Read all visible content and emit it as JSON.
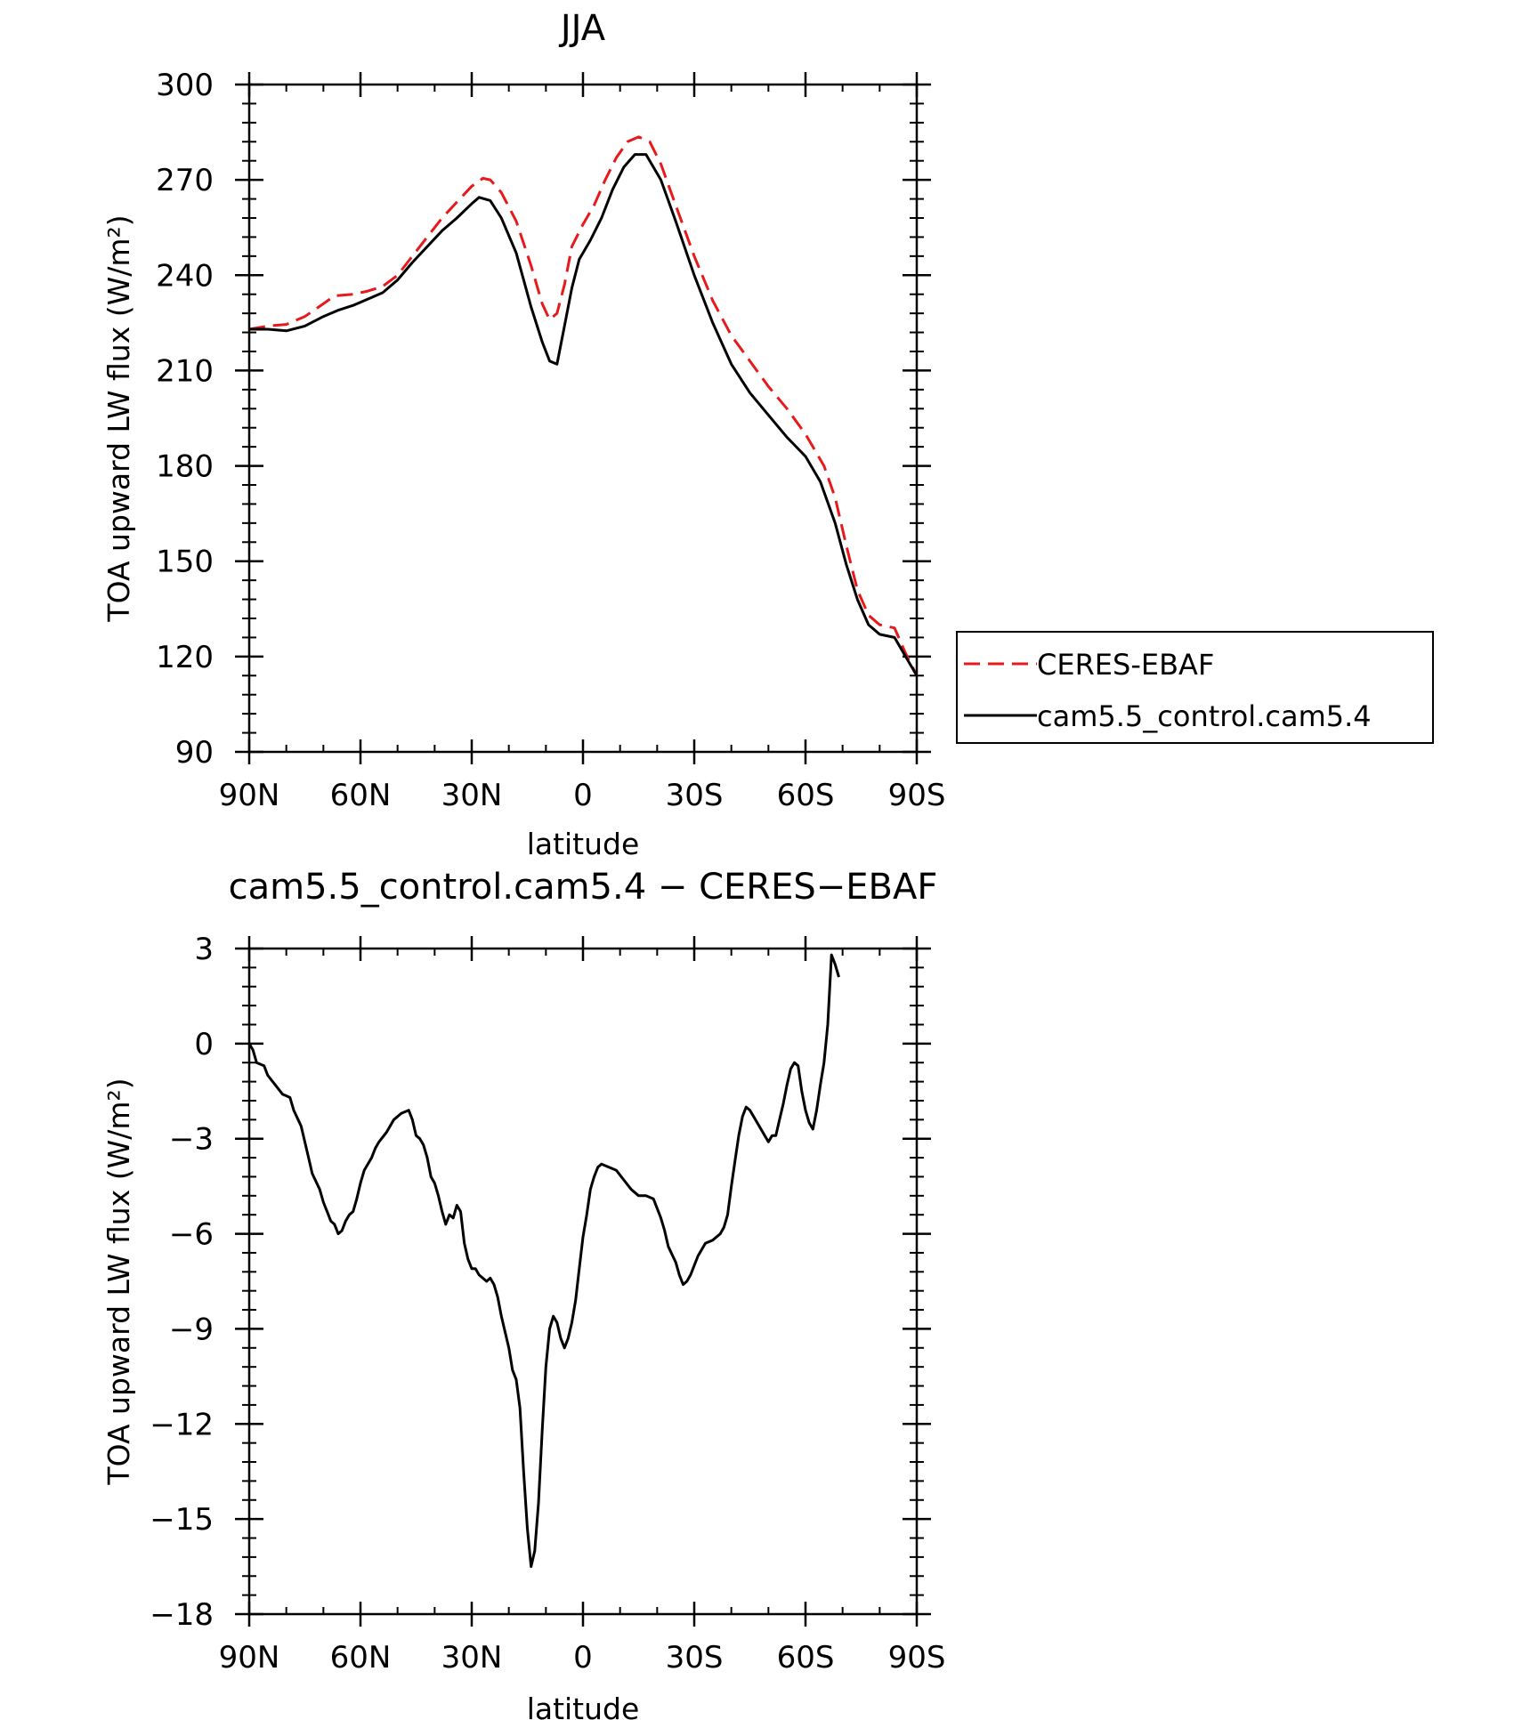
{
  "chart_data": [
    {
      "type": "line",
      "title": "JJA",
      "xlabel": "latitude",
      "ylabel": "TOA upward LW flux (W/m²)",
      "xlim": [
        -90,
        90
      ],
      "ylim": [
        90,
        300
      ],
      "x_ticks": [
        -90,
        -60,
        -30,
        0,
        30,
        60,
        90
      ],
      "x_tick_labels": [
        "90N",
        "60N",
        "30N",
        "0",
        "30S",
        "60S",
        "90S"
      ],
      "y_ticks": [
        90,
        120,
        150,
        180,
        210,
        240,
        270,
        300
      ],
      "y_tick_labels": [
        "90",
        "120",
        "150",
        "180",
        "210",
        "240",
        "270",
        "300"
      ],
      "legend": {
        "placement": "right"
      },
      "series": [
        {
          "name": "CERES-EBAF",
          "color": "#e8191b",
          "dash": "dashed",
          "points": [
            [
              -90,
              223
            ],
            [
              -85,
              224
            ],
            [
              -80,
              224.5
            ],
            [
              -75,
              227
            ],
            [
              -70,
              231
            ],
            [
              -67,
              233.5
            ],
            [
              -62,
              234
            ],
            [
              -58,
              235
            ],
            [
              -54,
              236.5
            ],
            [
              -50,
              240
            ],
            [
              -46,
              246
            ],
            [
              -42,
              252
            ],
            [
              -38,
              258
            ],
            [
              -34,
              263
            ],
            [
              -30,
              268
            ],
            [
              -27,
              270.5
            ],
            [
              -25,
              270
            ],
            [
              -22,
              266
            ],
            [
              -18,
              257
            ],
            [
              -14,
              243
            ],
            [
              -11,
              231
            ],
            [
              -9,
              226
            ],
            [
              -7,
              228
            ],
            [
              -5,
              237
            ],
            [
              -3,
              249
            ],
            [
              0,
              256
            ],
            [
              3,
              262
            ],
            [
              6,
              270
            ],
            [
              9,
              277
            ],
            [
              12,
              282
            ],
            [
              15,
              283.5
            ],
            [
              18,
              282
            ],
            [
              21,
              275
            ],
            [
              25,
              262
            ],
            [
              30,
              246
            ],
            [
              35,
              232
            ],
            [
              40,
              221
            ],
            [
              45,
              213
            ],
            [
              50,
              205
            ],
            [
              55,
              198
            ],
            [
              60,
              190
            ],
            [
              65,
              180
            ],
            [
              68,
              170
            ],
            [
              71,
              155
            ],
            [
              74,
              141
            ],
            [
              77,
              133
            ],
            [
              80,
              130
            ],
            [
              84,
              129
            ],
            [
              87,
              121
            ],
            [
              90,
              114
            ]
          ]
        },
        {
          "name": "cam5.5_control.cam5.4",
          "color": "#000000",
          "dash": "solid",
          "points": [
            [
              -90,
              223
            ],
            [
              -85,
              223
            ],
            [
              -80,
              222.5
            ],
            [
              -75,
              224
            ],
            [
              -70,
              227
            ],
            [
              -66,
              229
            ],
            [
              -62,
              230.5
            ],
            [
              -58,
              232.5
            ],
            [
              -54,
              234.5
            ],
            [
              -50,
              238.5
            ],
            [
              -46,
              244
            ],
            [
              -42,
              249
            ],
            [
              -38,
              254
            ],
            [
              -34,
              258
            ],
            [
              -30,
              262.5
            ],
            [
              -28,
              264.5
            ],
            [
              -25,
              263.5
            ],
            [
              -22,
              258
            ],
            [
              -18,
              247
            ],
            [
              -14,
              230
            ],
            [
              -11,
              219
            ],
            [
              -9,
              213
            ],
            [
              -7,
              212
            ],
            [
              -5,
              224
            ],
            [
              -3,
              236
            ],
            [
              -1,
              245
            ],
            [
              2,
              251
            ],
            [
              5,
              258
            ],
            [
              8,
              267
            ],
            [
              11,
              274
            ],
            [
              14,
              278
            ],
            [
              17,
              278
            ],
            [
              21,
              270
            ],
            [
              25,
              257
            ],
            [
              30,
              240
            ],
            [
              35,
              225
            ],
            [
              40,
              212
            ],
            [
              45,
              203
            ],
            [
              50,
              196
            ],
            [
              55,
              189
            ],
            [
              60,
              183
            ],
            [
              64,
              175
            ],
            [
              68,
              162
            ],
            [
              71,
              149
            ],
            [
              74,
              138
            ],
            [
              77,
              130
            ],
            [
              80,
              127
            ],
            [
              84,
              126
            ],
            [
              87,
              120
            ],
            [
              90,
              114
            ]
          ]
        }
      ]
    },
    {
      "type": "line",
      "title": "cam5.5_control.cam5.4 − CERES−EBAF",
      "xlabel": "latitude",
      "ylabel": "TOA upward LW flux (W/m²)",
      "xlim": [
        -90,
        90
      ],
      "ylim": [
        -18,
        3
      ],
      "x_ticks": [
        -90,
        -60,
        -30,
        0,
        30,
        60,
        90
      ],
      "x_tick_labels": [
        "90N",
        "60N",
        "30N",
        "0",
        "30S",
        "60S",
        "90S"
      ],
      "y_ticks": [
        -18,
        -15,
        -12,
        -9,
        -6,
        -3,
        0,
        3
      ],
      "y_tick_labels": [
        "−18",
        "−15",
        "−12",
        "−9",
        "−6",
        "−3",
        "0",
        "3"
      ],
      "series": [
        {
          "color": "#000000",
          "dash": "solid",
          "points": [
            [
              -90,
              0
            ],
            [
              -89,
              -0.2
            ],
            [
              -88,
              -0.6
            ],
            [
              -86,
              -0.7
            ],
            [
              -85,
              -1.0
            ],
            [
              -83,
              -1.3
            ],
            [
              -81,
              -1.6
            ],
            [
              -79,
              -1.7
            ],
            [
              -78,
              -2.1
            ],
            [
              -76,
              -2.6
            ],
            [
              -75,
              -3.1
            ],
            [
              -74,
              -3.6
            ],
            [
              -73,
              -4.1
            ],
            [
              -71,
              -4.6
            ],
            [
              -70,
              -5.0
            ],
            [
              -69,
              -5.3
            ],
            [
              -68,
              -5.6
            ],
            [
              -67,
              -5.7
            ],
            [
              -66,
              -6.0
            ],
            [
              -65,
              -5.9
            ],
            [
              -64,
              -5.6
            ],
            [
              -63,
              -5.4
            ],
            [
              -62,
              -5.3
            ],
            [
              -61,
              -4.9
            ],
            [
              -60,
              -4.4
            ],
            [
              -59,
              -4.0
            ],
            [
              -58,
              -3.8
            ],
            [
              -57,
              -3.6
            ],
            [
              -56,
              -3.3
            ],
            [
              -55,
              -3.1
            ],
            [
              -53,
              -2.8
            ],
            [
              -51,
              -2.4
            ],
            [
              -50,
              -2.3
            ],
            [
              -49,
              -2.2
            ],
            [
              -47,
              -2.1
            ],
            [
              -46,
              -2.4
            ],
            [
              -45,
              -2.9
            ],
            [
              -44,
              -3.0
            ],
            [
              -43,
              -3.2
            ],
            [
              -42,
              -3.6
            ],
            [
              -41,
              -4.2
            ],
            [
              -40,
              -4.4
            ],
            [
              -39,
              -4.8
            ],
            [
              -38,
              -5.3
            ],
            [
              -37,
              -5.7
            ],
            [
              -36,
              -5.4
            ],
            [
              -35,
              -5.5
            ],
            [
              -34,
              -5.1
            ],
            [
              -33,
              -5.3
            ],
            [
              -32,
              -6.3
            ],
            [
              -31,
              -6.8
            ],
            [
              -30,
              -7.1
            ],
            [
              -29,
              -7.1
            ],
            [
              -28,
              -7.3
            ],
            [
              -27,
              -7.4
            ],
            [
              -26,
              -7.5
            ],
            [
              -25,
              -7.4
            ],
            [
              -24,
              -7.6
            ],
            [
              -23,
              -8.0
            ],
            [
              -22,
              -8.6
            ],
            [
              -21,
              -9.1
            ],
            [
              -20,
              -9.6
            ],
            [
              -19,
              -10.3
            ],
            [
              -18,
              -10.6
            ],
            [
              -17,
              -11.5
            ],
            [
              -16,
              -13.5
            ],
            [
              -15,
              -15.3
            ],
            [
              -14,
              -16.5
            ],
            [
              -13,
              -16.0
            ],
            [
              -12,
              -14.5
            ],
            [
              -11,
              -12.2
            ],
            [
              -10,
              -10.2
            ],
            [
              -9,
              -9.0
            ],
            [
              -8,
              -8.6
            ],
            [
              -7,
              -8.8
            ],
            [
              -6,
              -9.3
            ],
            [
              -5,
              -9.6
            ],
            [
              -4,
              -9.3
            ],
            [
              -3,
              -8.8
            ],
            [
              -2,
              -8.1
            ],
            [
              -1,
              -7.1
            ],
            [
              0,
              -6.1
            ],
            [
              1,
              -5.4
            ],
            [
              2,
              -4.6
            ],
            [
              3,
              -4.2
            ],
            [
              4,
              -3.9
            ],
            [
              5,
              -3.8
            ],
            [
              7,
              -3.9
            ],
            [
              9,
              -4.0
            ],
            [
              11,
              -4.3
            ],
            [
              13,
              -4.6
            ],
            [
              15,
              -4.8
            ],
            [
              17,
              -4.8
            ],
            [
              19,
              -4.9
            ],
            [
              21,
              -5.5
            ],
            [
              22,
              -5.9
            ],
            [
              23,
              -6.4
            ],
            [
              25,
              -6.9
            ],
            [
              26,
              -7.3
            ],
            [
              27,
              -7.6
            ],
            [
              28,
              -7.5
            ],
            [
              29,
              -7.3
            ],
            [
              30,
              -7.0
            ],
            [
              31,
              -6.7
            ],
            [
              33,
              -6.3
            ],
            [
              35,
              -6.2
            ],
            [
              37,
              -6.0
            ],
            [
              38,
              -5.8
            ],
            [
              39,
              -5.4
            ],
            [
              40,
              -4.5
            ],
            [
              41,
              -3.7
            ],
            [
              42,
              -2.9
            ],
            [
              43,
              -2.3
            ],
            [
              44,
              -2.0
            ],
            [
              45,
              -2.1
            ],
            [
              46,
              -2.3
            ],
            [
              48,
              -2.7
            ],
            [
              50,
              -3.1
            ],
            [
              51,
              -2.9
            ],
            [
              52,
              -2.9
            ],
            [
              53,
              -2.4
            ],
            [
              54,
              -1.9
            ],
            [
              55,
              -1.3
            ],
            [
              56,
              -0.8
            ],
            [
              57,
              -0.6
            ],
            [
              58,
              -0.7
            ],
            [
              59,
              -1.5
            ],
            [
              60,
              -2.1
            ],
            [
              61,
              -2.5
            ],
            [
              62,
              -2.7
            ],
            [
              63,
              -2.1
            ],
            [
              64,
              -1.3
            ],
            [
              65,
              -0.6
            ],
            [
              66,
              0.6
            ],
            [
              67,
              2.8
            ],
            [
              68,
              2.5
            ],
            [
              69,
              2.1
            ]
          ]
        }
      ]
    }
  ]
}
